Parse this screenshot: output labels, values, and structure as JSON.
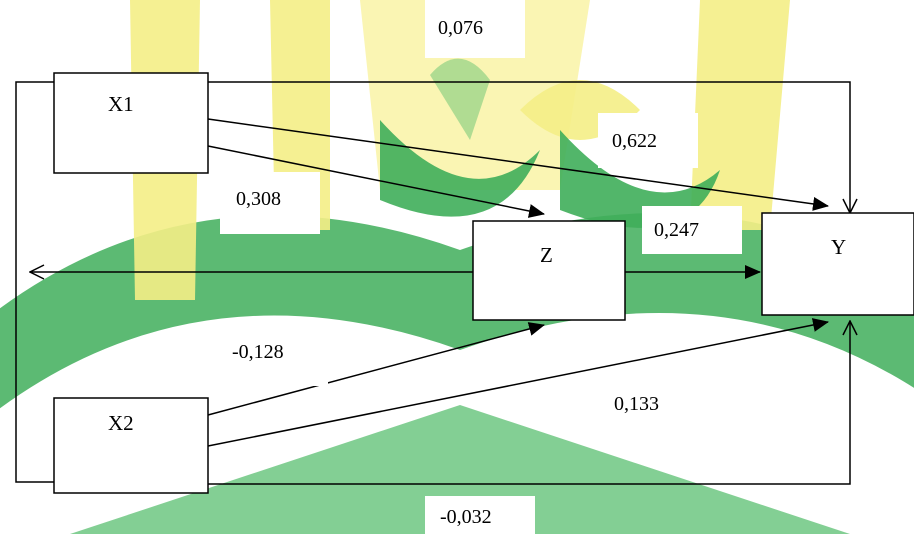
{
  "watermark": {
    "colors": {
      "green": "#3fae5a",
      "yellow": "#f2ea7a",
      "light_green": "#9ed68a"
    }
  },
  "nodes": {
    "x1": "X1",
    "x2": "X2",
    "z": "Z",
    "y": "Y"
  },
  "paths": {
    "x1_y_top": "0,076",
    "x1_y": "0,622",
    "x1_z": "0,308",
    "z_y": "0,247",
    "x2_z": "-0,128",
    "x2_y": "0,133",
    "x2_y_bottom": "-0,032"
  }
}
